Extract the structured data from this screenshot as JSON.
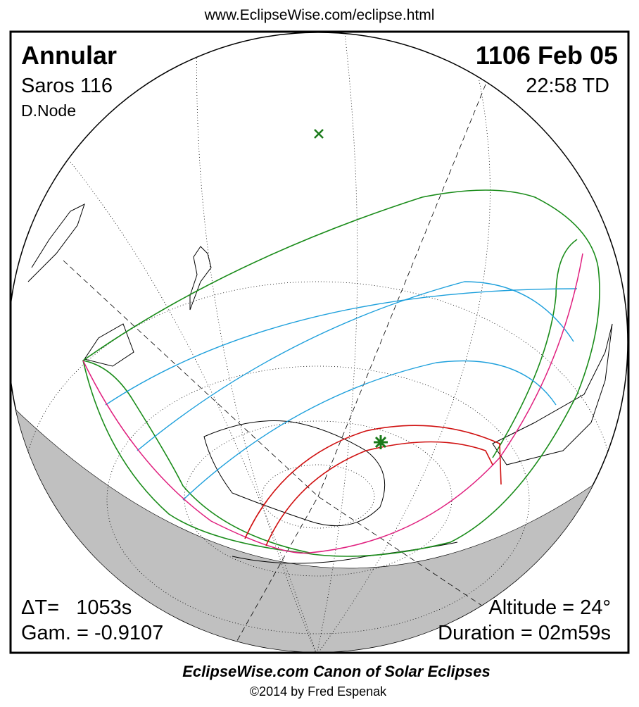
{
  "header": {
    "url": "www.EclipseWise.com/eclipse.html"
  },
  "eclipse": {
    "type": "Annular",
    "saros": "Saros 116",
    "node": "D.Node",
    "date": "1106 Feb 05",
    "time": "22:58 TD",
    "delta_t": "ΔT=   1053s",
    "gamma": "Gam. = -0.9107",
    "altitude": "Altitude = 24°",
    "duration": "Duration = 02m59s"
  },
  "footer": {
    "title": "EclipseWise.com Canon of Solar Eclipses",
    "copyright": "©2014 by Fred Espenak"
  }
}
